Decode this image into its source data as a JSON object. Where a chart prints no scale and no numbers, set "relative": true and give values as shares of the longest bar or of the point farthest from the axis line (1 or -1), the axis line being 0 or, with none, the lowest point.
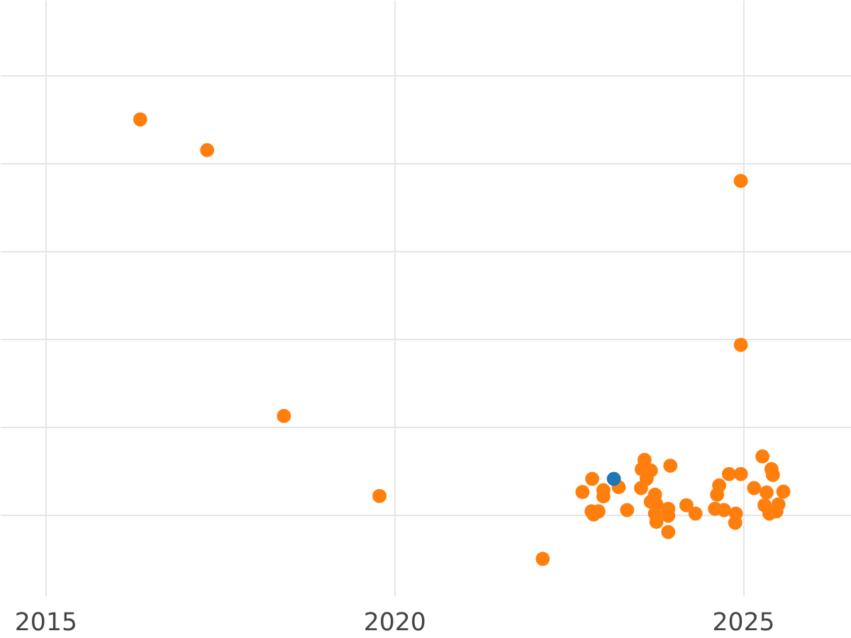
{
  "chart_data": {
    "type": "scatter",
    "relative": true,
    "grid": true,
    "xlim": [
      2014.35,
      2026.55
    ],
    "xticks": [
      2015,
      2020,
      2025
    ],
    "series": [
      {
        "color": "#ff7f0e",
        "x": [
          2016.35,
          2017.31,
          2024.96,
          2024.96,
          2018.41,
          2019.78,
          2022.12,
          2022.83,
          2022.69,
          2022.99,
          2022.99,
          2023.21,
          2022.82,
          2022.92,
          2022.85,
          2023.33,
          2023.58,
          2023.54,
          2023.67,
          2023.61,
          2023.53,
          2023.95,
          2023.73,
          2023.67,
          2023.75,
          2023.92,
          2023.73,
          2023.92,
          2023.75,
          2023.92,
          2024.18,
          2024.31,
          2024.59,
          2024.62,
          2024.65,
          2024.79,
          2024.96,
          2024.72,
          2024.89,
          2024.88,
          2025.15,
          2025.27,
          2025.4,
          2025.42,
          2025.33,
          2025.57,
          2025.3,
          2025.5,
          2025.37,
          2025.47
        ],
        "values": [
          1.0,
          0.93,
          0.86,
          0.487,
          0.325,
          0.143,
          0.0,
          0.182,
          0.152,
          0.156,
          0.142,
          0.163,
          0.108,
          0.108,
          0.101,
          0.111,
          0.225,
          0.204,
          0.201,
          0.182,
          0.161,
          0.212,
          0.146,
          0.13,
          0.124,
          0.114,
          0.103,
          0.098,
          0.084,
          0.061,
          0.122,
          0.103,
          0.114,
          0.146,
          0.167,
          0.193,
          0.193,
          0.111,
          0.103,
          0.082,
          0.161,
          0.233,
          0.204,
          0.191,
          0.151,
          0.153,
          0.122,
          0.124,
          0.103,
          0.108
        ]
      },
      {
        "color": "#1f77b4",
        "x": [
          2023.14
        ],
        "values": [
          0.182
        ]
      }
    ]
  }
}
